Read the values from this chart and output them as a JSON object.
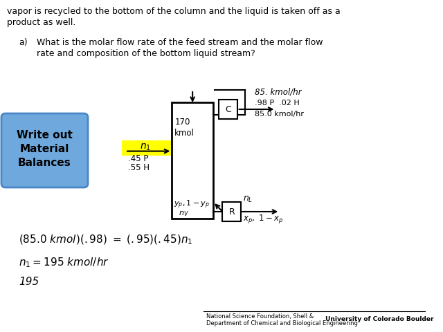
{
  "background_color": "#ffffff",
  "top_text_line1": "vapor is recycled to the bottom of the column and the liquid is taken off as a",
  "top_text_line2": "product as well.",
  "question_label": "a)",
  "question_line1": "What is the molar flow rate of the feed stream and the molar flow",
  "question_line2": "rate and composition of the bottom liquid stream?",
  "box_label_line1": "Write out",
  "box_label_line2": "Material",
  "box_label_line3": "Balances",
  "box_bg": "#6fa8dc",
  "box_border": "#4a86c8",
  "highlight_color": "#ffff00",
  "feed_comp1": ".45 P",
  "feed_comp2": ".55 H",
  "top_flow": "85. kmol/hr",
  "condenser_label": "C",
  "internal_flow_line1": "170",
  "internal_flow_line2": "kmol",
  "top_comp": ".98 P  .02 H",
  "top_product": "85.0 kmol/hr",
  "reboiler_label": "R",
  "footer1": "National Science Foundation, Shell &",
  "footer2": "Department of Chemical and Biological Engineering",
  "footer3": "University of Colorado Boulder"
}
